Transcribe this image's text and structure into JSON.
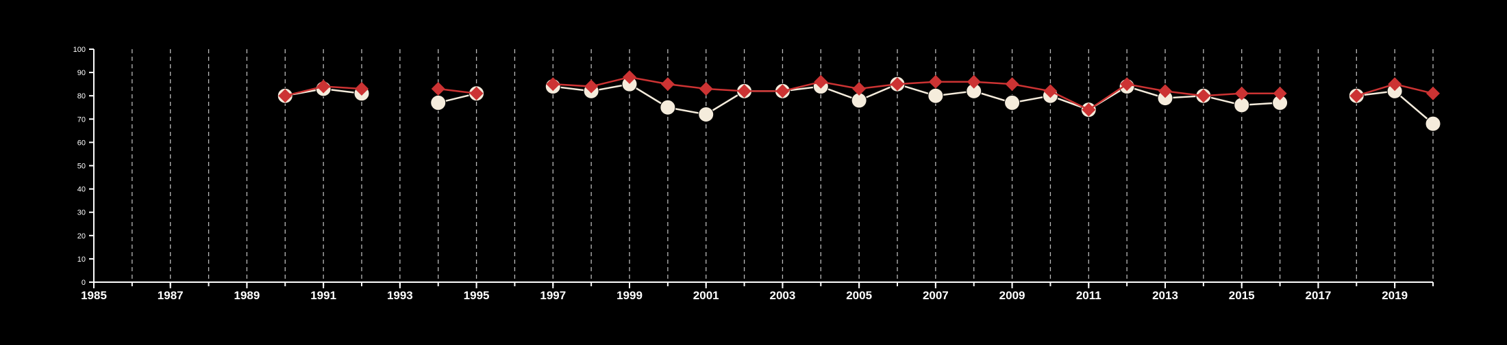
{
  "chart_data": {
    "type": "line",
    "title": "",
    "xlabel": "",
    "ylabel": "",
    "xlim": [
      1985,
      2020
    ],
    "ylim": [
      0,
      100
    ],
    "x_ticks": [
      1985,
      1987,
      1989,
      1991,
      1993,
      1995,
      1997,
      1999,
      2001,
      2003,
      2005,
      2007,
      2009,
      2011,
      2013,
      2015,
      2017,
      2019
    ],
    "x_tick_labels": [
      "1985",
      "1987",
      "1989",
      "1991",
      "1993",
      "1995",
      "1997",
      "1999",
      "2001",
      "2003",
      "2005",
      "2007",
      "2009",
      "2011",
      "2013",
      "2015",
      "2017",
      "2019"
    ],
    "y_ticks": [
      0,
      10,
      20,
      30,
      40,
      50,
      60,
      70,
      80,
      90,
      100
    ],
    "y_tick_labels": [
      "0",
      "10",
      "20",
      "30",
      "40",
      "50",
      "60",
      "70",
      "80",
      "90",
      "100"
    ],
    "vertical_grid": true,
    "grid_style": "dashed",
    "x": [
      1990,
      1991,
      1992,
      1993,
      1994,
      1995,
      1996,
      1997,
      1998,
      1999,
      2000,
      2001,
      2002,
      2003,
      2004,
      2005,
      2006,
      2007,
      2008,
      2009,
      2010,
      2011,
      2012,
      2013,
      2014,
      2015,
      2016,
      2017,
      2018,
      2019,
      2020
    ],
    "series": [
      {
        "marker": "circle",
        "color": "#f5ecdc",
        "values": [
          80,
          83,
          81,
          null,
          77,
          81,
          null,
          84,
          82,
          85,
          75,
          72,
          82,
          82,
          84,
          78,
          85,
          80,
          82,
          77,
          80,
          74,
          84,
          79,
          80,
          76,
          77,
          null,
          80,
          82,
          68
        ]
      },
      {
        "marker": "diamond",
        "color": "#cc3333",
        "values": [
          80,
          84,
          83,
          null,
          83,
          81,
          null,
          85,
          84,
          88,
          85,
          83,
          82,
          82,
          86,
          83,
          85,
          86,
          86,
          85,
          82,
          74,
          85,
          82,
          80,
          81,
          81,
          null,
          80,
          85,
          81
        ]
      }
    ]
  },
  "colors": {
    "background": "#000000",
    "axis": "#ffffff",
    "grid": "#bbbbbb"
  }
}
